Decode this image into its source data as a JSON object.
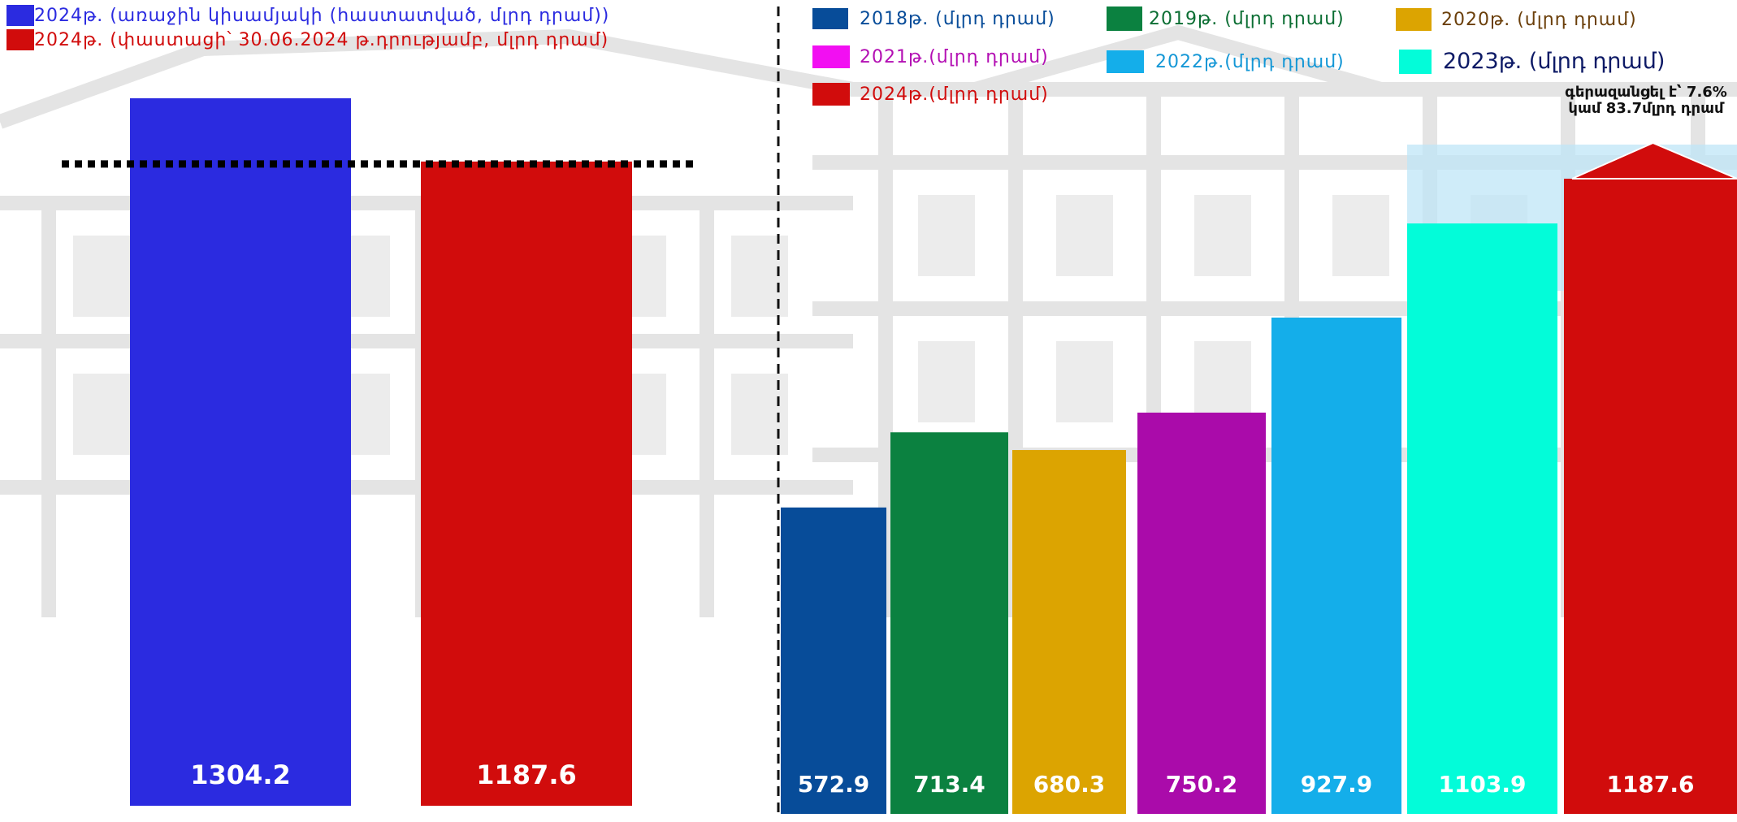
{
  "chart_data": [
    {
      "type": "bar",
      "categories": [
        "2024թ. (առաջին կիսամյակի (հաստատված, մլրդ դրամ))",
        "2024թ. (փաստացի՝ 30.06.2024 թ.դրությամբ, մլրդ դրամ)"
      ],
      "values": [
        1304.2,
        1187.6
      ],
      "data_labels": [
        "1304.2",
        "1187.6"
      ],
      "colors": [
        "#2b2be0",
        "#d10c0c"
      ],
      "legend": [
        {
          "label": "2024թ. (առաջին կիսամյակի (հաստատված, մլրդ դրամ))",
          "color": "#2b2be0",
          "text_color": "#2b2be0"
        },
        {
          "label": "2024թ. (փաստացի՝ 30.06.2024 թ.դրությամբ, մլրդ դրամ)",
          "color": "#d10c0c",
          "text_color": "#d10c0c"
        }
      ],
      "reference_line": "dashed",
      "legend_position": "top-left"
    },
    {
      "type": "bar",
      "categories": [
        "2018",
        "2019",
        "2020",
        "2021",
        "2022",
        "2023",
        "2024"
      ],
      "values": [
        572.9,
        713.4,
        680.3,
        750.2,
        927.9,
        1103.9,
        1187.6
      ],
      "data_labels": [
        "572.9",
        "713.4",
        "680.3",
        "750.2",
        "927.9",
        "1103.9",
        "1187.6"
      ],
      "colors": [
        "#074c99",
        "#0b8140",
        "#dca401",
        "#aa0baa",
        "#14aeea",
        "#03fcd9",
        "#d10c0c"
      ],
      "legend": [
        {
          "label": "2018թ. (մլրդ դրամ)",
          "color": "#074c99",
          "text_color": "#074c99"
        },
        {
          "label": "2019թ. (մլրդ դրամ)",
          "color": "#0b8140",
          "text_color": "#0b6e33"
        },
        {
          "label": "2020թ. (մլրդ դրամ)",
          "color": "#dca401",
          "text_color": "#6b3f0a"
        },
        {
          "label": "2021թ.(մլրդ դրամ)",
          "color": "#f20ff2",
          "text_color": "#b30fb3"
        },
        {
          "label": "2022թ.(մլրդ դրամ)",
          "color": "#14aeea",
          "text_color": "#1497d6"
        },
        {
          "label": "2023թ. (մլրդ դրամ)",
          "color": "#03fcd9",
          "text_color": "#0d1a66"
        },
        {
          "label": "2024թ.(մլրդ դրամ)",
          "color": "#d10c0c",
          "text_color": "#d10c0c"
        }
      ],
      "annotation": "գերազանցել է՝ 7.6% կամ 83.7մլրդ դրամ",
      "legend_position": "top"
    }
  ]
}
